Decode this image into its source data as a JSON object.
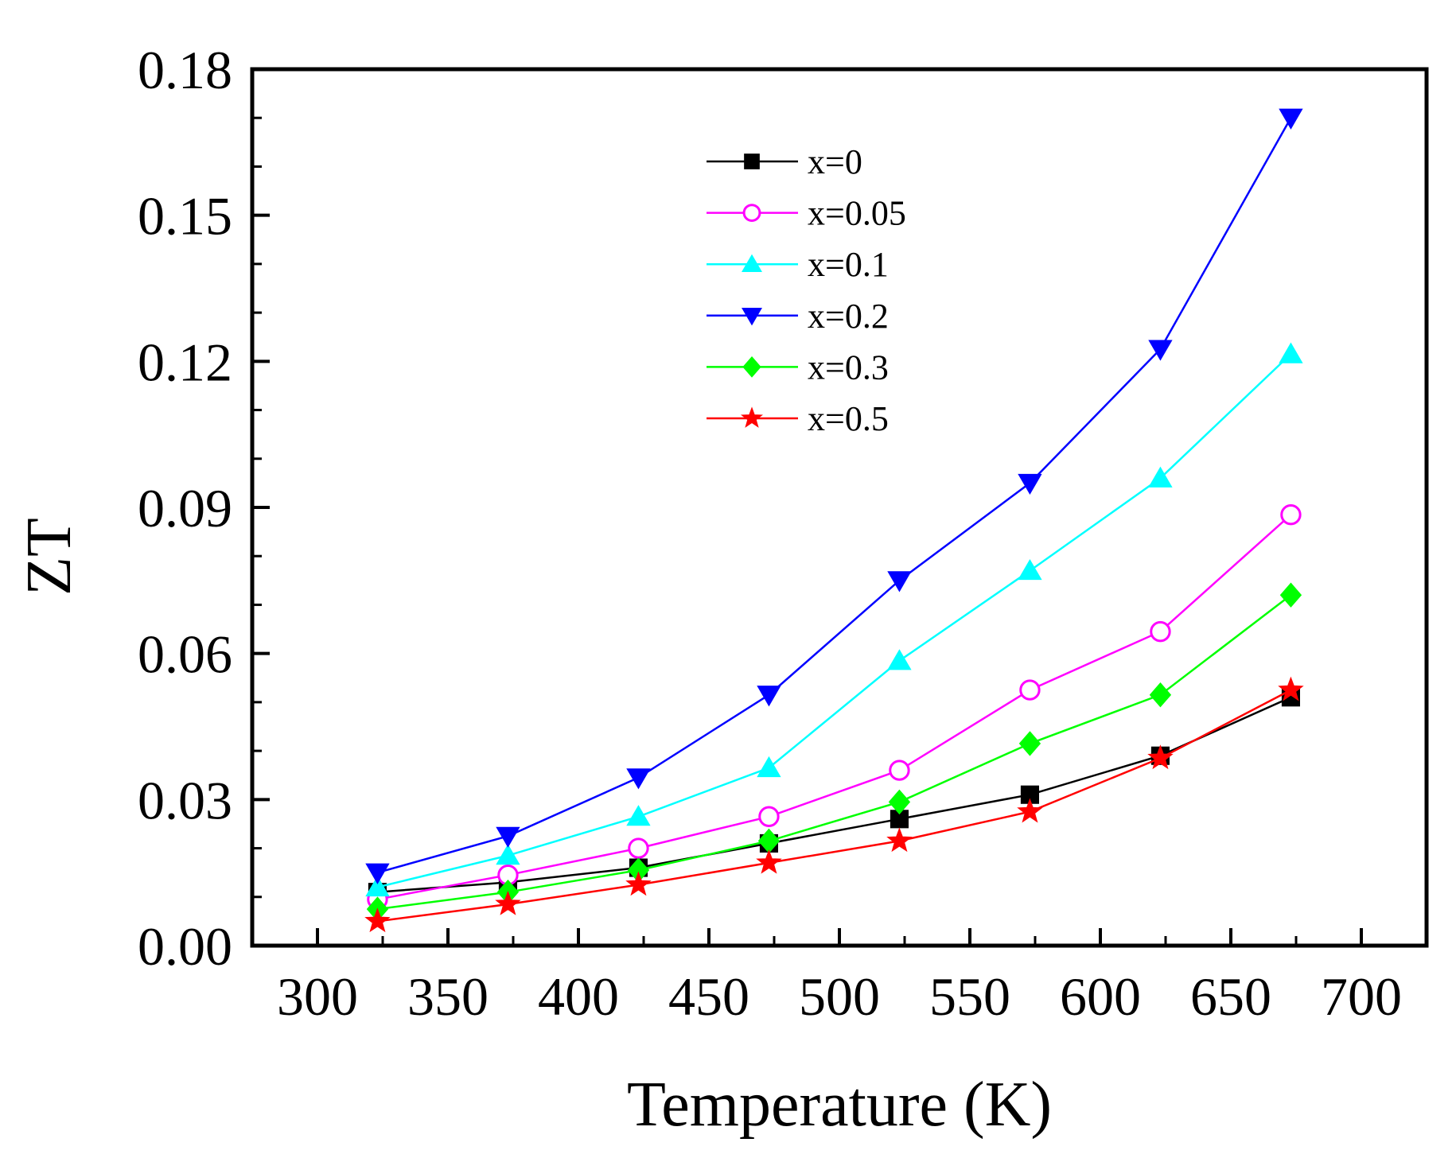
{
  "chart_data": {
    "type": "line",
    "title": "",
    "xlabel": "Temperature (K)",
    "ylabel": "ZT",
    "xlim": [
      275,
      725
    ],
    "ylim": [
      0,
      0.18
    ],
    "xticks": [
      300,
      350,
      400,
      450,
      500,
      550,
      600,
      650,
      700
    ],
    "xtick_labels": [
      "300",
      "350",
      "400",
      "450",
      "500",
      "550",
      "600",
      "650",
      "700"
    ],
    "yticks": [
      0,
      0.03,
      0.06,
      0.09,
      0.12,
      0.15,
      0.18
    ],
    "ytick_labels": [
      "0.00",
      "0.03",
      "0.06",
      "0.09",
      "0.12",
      "0.15",
      "0.18"
    ],
    "grid": false,
    "legend_position": "top-center",
    "x": [
      323,
      373,
      423,
      473,
      523,
      573,
      623,
      673
    ],
    "series": [
      {
        "name": "x=0",
        "marker": "square",
        "filled": true,
        "color": "#000000",
        "values": [
          0.011,
          0.013,
          0.016,
          0.021,
          0.026,
          0.031,
          0.039,
          0.051
        ]
      },
      {
        "name": "x=0.05",
        "marker": "circle",
        "filled": false,
        "color": "#ff00ff",
        "values": [
          0.0095,
          0.0145,
          0.02,
          0.0265,
          0.036,
          0.0525,
          0.0645,
          0.0885
        ]
      },
      {
        "name": "x=0.1",
        "marker": "triangle-up",
        "filled": true,
        "color": "#00ffff",
        "values": [
          0.012,
          0.0185,
          0.0265,
          0.0365,
          0.0585,
          0.077,
          0.096,
          0.1215
        ]
      },
      {
        "name": "x=0.2",
        "marker": "triangle-down",
        "filled": true,
        "color": "#0000ff",
        "values": [
          0.015,
          0.0225,
          0.0345,
          0.0515,
          0.075,
          0.095,
          0.1225,
          0.17
        ]
      },
      {
        "name": "x=0.3",
        "marker": "diamond",
        "filled": true,
        "color": "#00ff00",
        "values": [
          0.0075,
          0.011,
          0.0155,
          0.0215,
          0.0295,
          0.0415,
          0.0515,
          0.072
        ]
      },
      {
        "name": "x=0.5",
        "marker": "star",
        "filled": true,
        "color": "#ff0000",
        "values": [
          0.005,
          0.0085,
          0.0125,
          0.017,
          0.0215,
          0.0275,
          0.0385,
          0.0525
        ]
      }
    ]
  }
}
